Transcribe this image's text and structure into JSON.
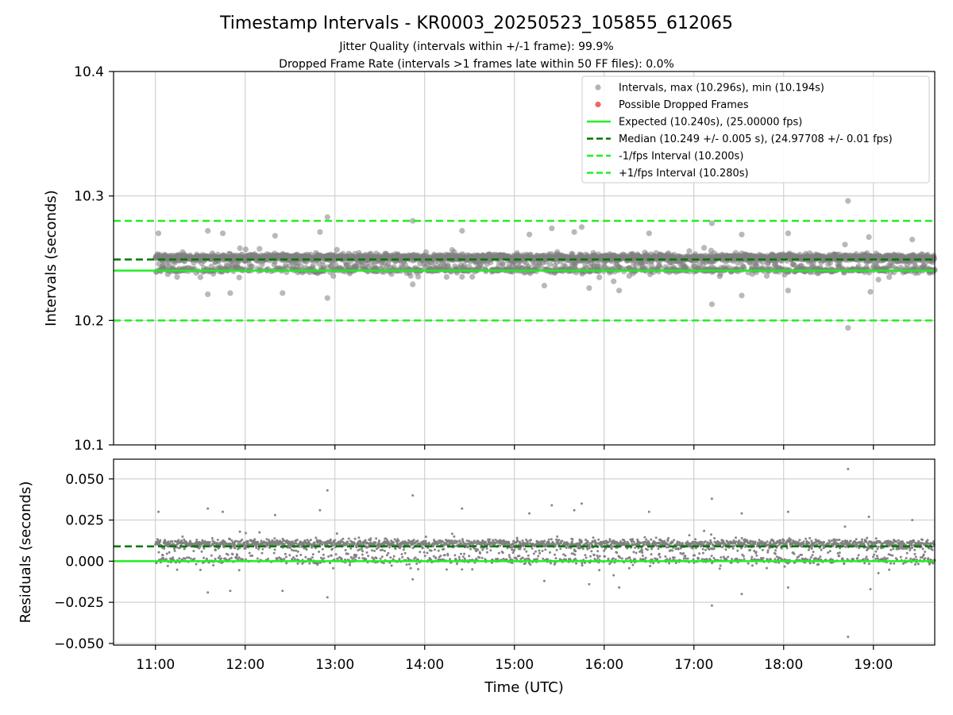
{
  "figure": {
    "title": "Timestamp Intervals - KR0003_20250523_105855_612065",
    "subtitle_1": "Jitter Quality (intervals within +/-1 frame): 99.9%",
    "subtitle_2": "Dropped Frame Rate (intervals >1 frames late within 50 FF files): 0.0%",
    "xlabel": "Time (UTC)"
  },
  "colors": {
    "points": "#808080",
    "dropped": "#f06464",
    "expected": "#22ee22",
    "median": "#007700",
    "fps_interval": "#22ee22",
    "grid": "#c8c8c8"
  },
  "chart_data": [
    {
      "type": "scatter",
      "panel": "intervals",
      "ylabel": "Intervals (seconds)",
      "xlim": [
        "10:32",
        "19:41"
      ],
      "ylim": [
        10.1,
        10.4
      ],
      "x_ticks": [
        "11:00",
        "12:00",
        "13:00",
        "14:00",
        "15:00",
        "16:00",
        "17:00",
        "18:00",
        "19:00"
      ],
      "y_ticks": [
        "10.1",
        "10.2",
        "10.3",
        "10.4"
      ],
      "grid": true,
      "legend_position": "top-right",
      "legend": [
        "Intervals, max (10.296s), min (10.194s)",
        "Possible Dropped Frames",
        "Expected (10.240s), (25.00000 fps)",
        "Median (10.249 +/- 0.005 s), (24.97708 +/- 0.01 fps)",
        "-1/fps Interval (10.200s)",
        "+1/fps Interval (10.280s)"
      ],
      "expected": 10.24,
      "median": 10.249,
      "minus_fps": 10.2,
      "plus_fps": 10.28,
      "max": 10.296,
      "min": 10.194,
      "outliers": [
        [
          "11:02",
          10.27
        ],
        [
          "11:35",
          10.272
        ],
        [
          "11:45",
          10.27
        ],
        [
          "12:20",
          10.268
        ],
        [
          "12:50",
          10.271
        ],
        [
          "12:55",
          10.283
        ],
        [
          "13:52",
          10.28
        ],
        [
          "14:25",
          10.272
        ],
        [
          "15:10",
          10.269
        ],
        [
          "15:25",
          10.274
        ],
        [
          "15:40",
          10.271
        ],
        [
          "15:45",
          10.275
        ],
        [
          "16:30",
          10.27
        ],
        [
          "17:12",
          10.278
        ],
        [
          "17:32",
          10.269
        ],
        [
          "18:03",
          10.27
        ],
        [
          "18:41",
          10.261
        ],
        [
          "18:43",
          10.296
        ],
        [
          "18:57",
          10.267
        ],
        [
          "19:26",
          10.265
        ],
        [
          "11:35",
          10.221
        ],
        [
          "11:50",
          10.222
        ],
        [
          "12:25",
          10.222
        ],
        [
          "12:55",
          10.218
        ],
        [
          "13:52",
          10.229
        ],
        [
          "14:25",
          10.235
        ],
        [
          "15:20",
          10.228
        ],
        [
          "15:50",
          10.226
        ],
        [
          "16:10",
          10.224
        ],
        [
          "17:12",
          10.213
        ],
        [
          "17:32",
          10.22
        ],
        [
          "18:03",
          10.224
        ],
        [
          "18:43",
          10.194
        ],
        [
          "18:58",
          10.223
        ],
        [
          "19:28",
          10.238
        ]
      ]
    },
    {
      "type": "scatter",
      "panel": "residuals",
      "ylabel": "Residuals (seconds)",
      "xlim": [
        "10:32",
        "19:41"
      ],
      "ylim": [
        -0.051,
        0.062
      ],
      "x_ticks": [
        "11:00",
        "12:00",
        "13:00",
        "14:00",
        "15:00",
        "16:00",
        "17:00",
        "18:00",
        "19:00"
      ],
      "y_ticks": [
        "0.050",
        "0.025",
        "0.000",
        "−0.025",
        "−0.050"
      ],
      "grid": true,
      "expected": 0.0,
      "median": 0.009,
      "max": 0.056,
      "min": -0.046
    }
  ]
}
